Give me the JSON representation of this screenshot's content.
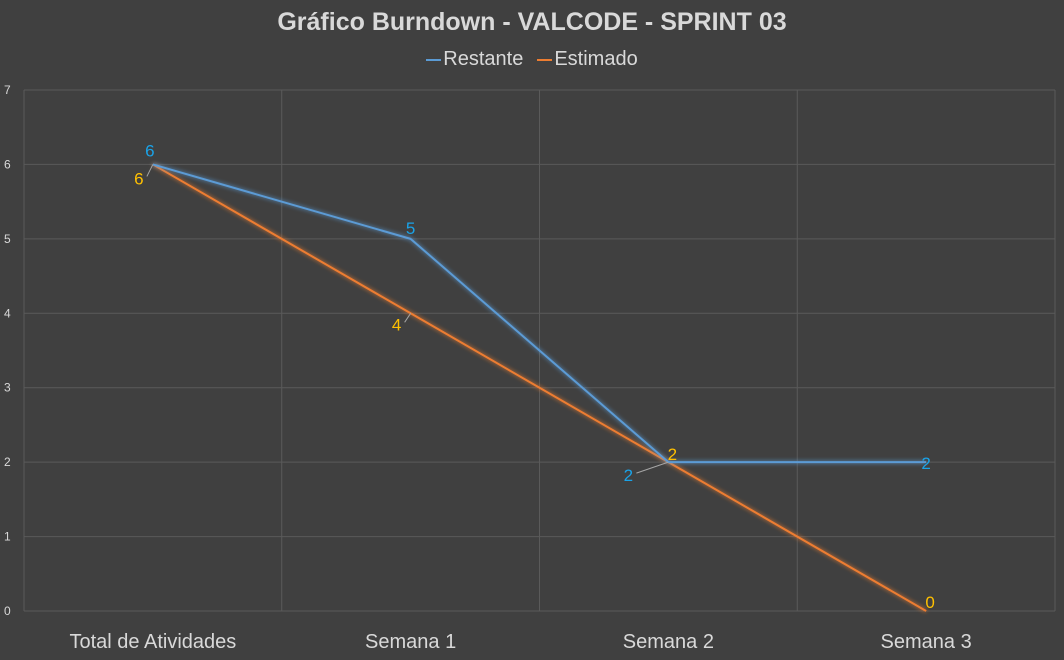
{
  "chart_data": {
    "type": "line",
    "title": "Gráfico Burndown - VALCODE - SPRINT 03",
    "categories": [
      "Total de Atividades",
      "Semana 1",
      "Semana 2",
      "Semana 3"
    ],
    "series": [
      {
        "name": "Restante",
        "values": [
          6,
          5,
          2,
          2
        ],
        "color": "#5b9bd5",
        "label_color": "#1aa3e8"
      },
      {
        "name": "Estimado",
        "values": [
          6,
          4,
          2,
          0
        ],
        "color": "#ed7d31",
        "label_color": "#ffc000"
      }
    ],
    "yticks": [
      "0",
      "1",
      "2",
      "3",
      "4",
      "5",
      "6",
      "7"
    ],
    "ylim": [
      0,
      7
    ],
    "grid": true,
    "legend_position": "top"
  }
}
